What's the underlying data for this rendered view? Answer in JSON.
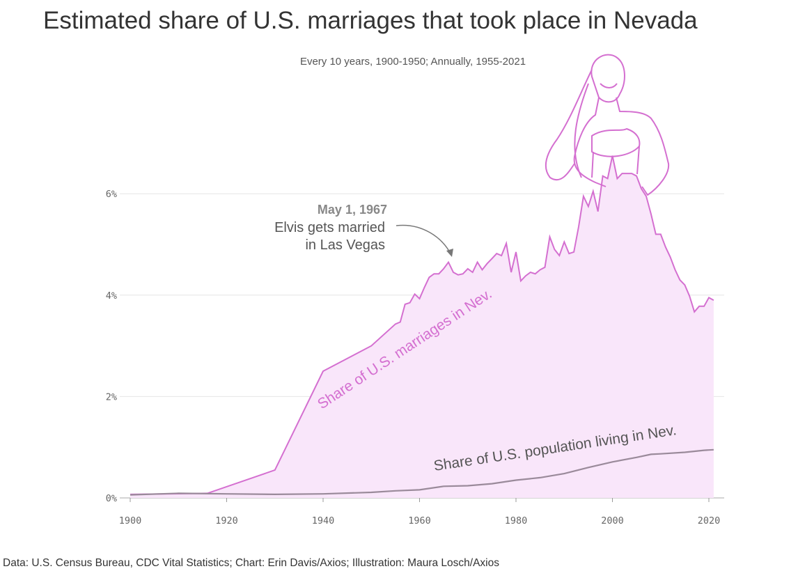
{
  "title": "Estimated share of U.S. marriages that took place in Nevada",
  "subtitle": "Every 10 years, 1900-1950; Annually, 1955-2021",
  "source": "Data: U.S. Census Bureau, CDC Vital Statistics; Chart: Erin Davis/Axios; Illustration: Maura Losch/Axios",
  "colors": {
    "marriage": "#d46fd0",
    "fill": "#f9e6fa",
    "population": "#9a8a9a",
    "grid": "#e6e6e6"
  },
  "chart_data": {
    "type": "area",
    "xlim": [
      1900,
      2023
    ],
    "ylim": [
      0,
      6
    ],
    "x_ticks": [
      "1900",
      "1920",
      "1940",
      "1960",
      "1980",
      "2000",
      "2020"
    ],
    "y_ticks": [
      "0%",
      "2%",
      "4%",
      "6%"
    ],
    "grid": "horizontal",
    "annotation": {
      "date": "May 1, 1967",
      "line1": "Elvis gets married",
      "line2": "in Las Vegas",
      "x": 1967
    },
    "series": [
      {
        "name": "Share of U.S. marriages in Nev.",
        "x": [
          1900,
          1916,
          1930,
          1940,
          1950,
          1955,
          1956,
          1957,
          1958,
          1959,
          1960,
          1961,
          1962,
          1963,
          1964,
          1965,
          1966,
          1967,
          1968,
          1969,
          1970,
          1971,
          1972,
          1973,
          1974,
          1975,
          1976,
          1977,
          1978,
          1979,
          1980,
          1981,
          1982,
          1983,
          1984,
          1985,
          1986,
          1987,
          1988,
          1989,
          1990,
          1991,
          1992,
          1993,
          1994,
          1995,
          1996,
          1997,
          1998,
          1999,
          2000,
          2001,
          2002,
          2003,
          2004,
          2005,
          2006,
          2007,
          2008,
          2009,
          2010,
          2011,
          2012,
          2013,
          2014,
          2015,
          2016,
          2017,
          2018,
          2019,
          2020,
          2021
        ],
        "values": [
          0.07,
          0.09,
          0.55,
          2.5,
          3.0,
          3.43,
          3.47,
          3.82,
          3.85,
          4.02,
          3.93,
          4.15,
          4.35,
          4.42,
          4.42,
          4.52,
          4.65,
          4.45,
          4.4,
          4.42,
          4.52,
          4.45,
          4.65,
          4.5,
          4.62,
          4.72,
          4.82,
          4.78,
          5.02,
          4.45,
          4.85,
          4.28,
          4.38,
          4.45,
          4.42,
          4.5,
          4.55,
          5.15,
          4.9,
          4.78,
          5.05,
          4.82,
          4.85,
          5.35,
          5.95,
          5.75,
          6.05,
          5.65,
          6.35,
          6.3,
          6.75,
          6.3,
          6.4,
          6.4,
          6.4,
          6.35,
          6.1,
          5.95,
          5.6,
          5.2,
          5.2,
          4.95,
          4.75,
          4.5,
          4.3,
          4.2,
          3.98,
          3.67,
          3.78,
          3.78,
          3.95,
          3.9
        ]
      },
      {
        "name": "Share of U.S. population living in Nev.",
        "x": [
          1900,
          1910,
          1920,
          1930,
          1940,
          1950,
          1955,
          1960,
          1965,
          1970,
          1975,
          1980,
          1985,
          1990,
          1995,
          2000,
          2005,
          2008,
          2010,
          2015,
          2019,
          2021
        ],
        "values": [
          0.06,
          0.09,
          0.08,
          0.07,
          0.08,
          0.11,
          0.14,
          0.16,
          0.23,
          0.24,
          0.28,
          0.35,
          0.4,
          0.48,
          0.6,
          0.71,
          0.8,
          0.86,
          0.87,
          0.9,
          0.94,
          0.95
        ]
      }
    ]
  }
}
